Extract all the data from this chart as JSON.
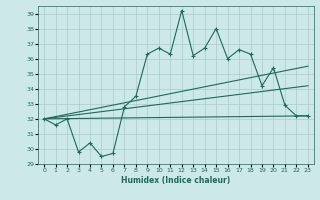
{
  "xlabel": "Humidex (Indice chaleur)",
  "ylabel": "",
  "xlim": [
    -0.5,
    23.5
  ],
  "ylim": [
    29,
    39.5
  ],
  "yticks": [
    29,
    30,
    31,
    32,
    33,
    34,
    35,
    36,
    37,
    38,
    39
  ],
  "xticks": [
    0,
    1,
    2,
    3,
    4,
    5,
    6,
    7,
    8,
    9,
    10,
    11,
    12,
    13,
    14,
    15,
    16,
    17,
    18,
    19,
    20,
    21,
    22,
    23
  ],
  "bg_color": "#cce8e8",
  "grid_color": "#aacccc",
  "line_color": "#1a6b5a",
  "series": {
    "main": {
      "x": [
        0,
        1,
        2,
        3,
        4,
        5,
        6,
        7,
        8,
        9,
        10,
        11,
        12,
        13,
        14,
        15,
        16,
        17,
        18,
        19,
        20,
        21,
        22,
        23
      ],
      "y": [
        32,
        31.6,
        32,
        29.8,
        30.4,
        29.5,
        29.7,
        32.8,
        33.5,
        36.3,
        36.7,
        36.3,
        39.2,
        36.2,
        36.7,
        38.0,
        36.0,
        36.6,
        36.3,
        34.2,
        35.4,
        32.9,
        32.2,
        32.2
      ]
    },
    "line1": {
      "x": [
        0,
        23
      ],
      "y": [
        32.0,
        32.2
      ]
    },
    "line2": {
      "x": [
        0,
        23
      ],
      "y": [
        32.0,
        34.2
      ]
    },
    "line3": {
      "x": [
        0,
        23
      ],
      "y": [
        32.0,
        35.5
      ]
    }
  }
}
